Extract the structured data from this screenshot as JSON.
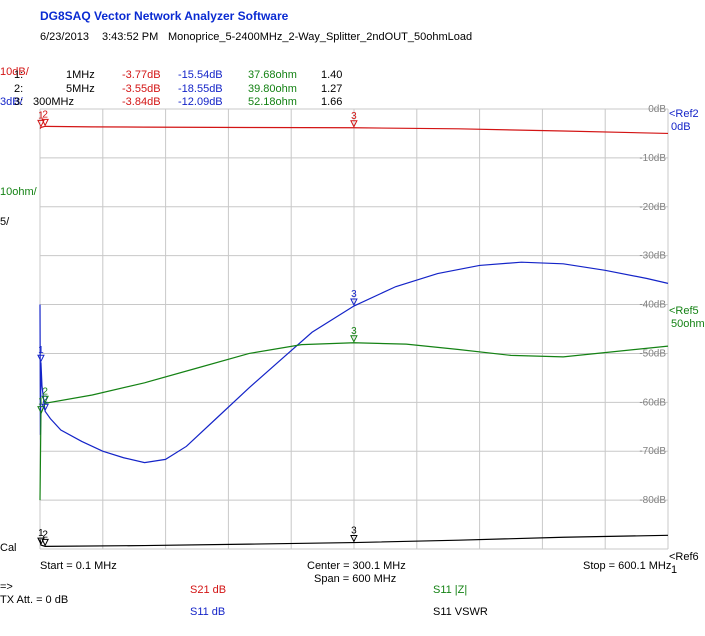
{
  "app": {
    "title": "DG8SAQ Vector Network Analyzer Software",
    "date": "6/23/2013",
    "time": "3:43:52 PM",
    "measurement": "Monoprice_5-2400MHz_2-Way_Splitter_2ndOUT_50ohmLoad"
  },
  "scales": {
    "s21": "10dB/",
    "s11": "3dB/",
    "z": "10ohm/",
    "vswr": "5/",
    "cal": "Cal"
  },
  "markers": [
    {
      "id": "1:",
      "freq": "1MHz",
      "s21": "-3.77dB",
      "s11": "-15.54dB",
      "z": "37.68ohm",
      "vswr": "1.40"
    },
    {
      "id": "2:",
      "freq": "5MHz",
      "s21": "-3.55dB",
      "s11": "-18.55dB",
      "z": "39.80ohm",
      "vswr": "1.27"
    },
    {
      "id": "3:",
      "freq": "300MHz",
      "s21": "-3.84dB",
      "s11": "-12.09dB",
      "z": "52.18ohm",
      "vswr": "1.66"
    }
  ],
  "right_labels": {
    "ref2": "<Ref2",
    "ref2_val": "0dB",
    "ref5": "<Ref5",
    "ref5_val": "50ohm",
    "ref6": "<Ref6",
    "ref6_val": "1"
  },
  "footer": {
    "start": "Start = 0.1 MHz",
    "center": "Center = 300.1 MHz",
    "span": "Span = 600 MHz",
    "stop": "Stop = 600.1 MHz",
    "arrow": "=>",
    "tx_att": "TX Att.  = 0 dB",
    "legend": {
      "s21": "S21  dB",
      "s11": "S11  dB",
      "z": "S11  |Z|",
      "vswr": "S11  VSWR"
    }
  },
  "colors": {
    "s21": "#d31414",
    "s11": "#1424c8",
    "z": "#148214",
    "vswr": "#000000",
    "grid": "#c8c8c8"
  },
  "chart_data": {
    "type": "line",
    "xlim": [
      0.1,
      600.1
    ],
    "ylim_db": [
      -90,
      0
    ],
    "y_tick_labels": [
      "0dB",
      "-10dB",
      "-20dB",
      "-30dB",
      "-40dB",
      "-50dB",
      "-60dB",
      "-70dB",
      "-80dB"
    ],
    "grid": true,
    "marker_freqs_mhz": [
      1,
      5,
      300
    ],
    "series": [
      {
        "key": "s21",
        "x": [
          0.1,
          1,
          5,
          50,
          100,
          200,
          300,
          400,
          500,
          600.1
        ],
        "y": [
          -4.0,
          -3.77,
          -3.55,
          -3.65,
          -3.7,
          -3.78,
          -3.84,
          -4.05,
          -4.5,
          -5.0
        ]
      },
      {
        "key": "s11",
        "x": [
          0.1,
          0.5,
          1,
          2,
          5,
          10,
          20,
          40,
          60,
          80,
          100,
          120,
          140,
          170,
          200,
          230,
          260,
          300,
          340,
          380,
          420,
          460,
          500,
          540,
          580,
          600.1
        ],
        "y": [
          -12,
          -20,
          -15.54,
          -17,
          -18.55,
          -19.0,
          -19.7,
          -20.4,
          -21.0,
          -21.4,
          -21.7,
          -21.5,
          -20.7,
          -18.9,
          -17.1,
          -15.4,
          -13.7,
          -12.09,
          -10.9,
          -10.1,
          -9.6,
          -9.4,
          -9.5,
          -9.9,
          -10.4,
          -10.7
        ]
      },
      {
        "key": "z",
        "x": [
          0.1,
          1,
          5,
          50,
          100,
          150,
          200,
          250,
          300,
          350,
          400,
          450,
          500,
          550,
          600.1
        ],
        "y": [
          20,
          37.68,
          39.8,
          41.5,
          44.0,
          47.0,
          50.0,
          51.8,
          52.18,
          51.9,
          50.8,
          49.6,
          49.3,
          50.4,
          51.5
        ]
      },
      {
        "key": "vswr",
        "x": [
          0.1,
          1,
          5,
          100,
          200,
          300,
          400,
          500,
          600.1
        ],
        "y": [
          2.0,
          1.4,
          1.27,
          1.35,
          1.5,
          1.66,
          1.9,
          2.2,
          2.4
        ]
      }
    ]
  }
}
